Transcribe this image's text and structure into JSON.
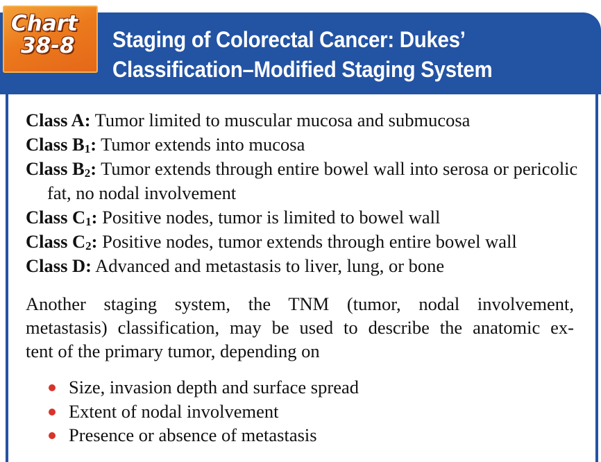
{
  "badge": {
    "line1": "Chart",
    "line2": "38-8"
  },
  "title": {
    "line1": "Staging of Colorectal Cancer: Dukes’",
    "line2": "Classification–Modified Staging System"
  },
  "classes": [
    {
      "label": "Class A",
      "sub": "",
      "text": "Tumor limited to muscular mucosa and submucosa"
    },
    {
      "label": "Class B",
      "sub": "1",
      "text": "Tumor extends into mucosa"
    },
    {
      "label": "Class B",
      "sub": "2",
      "text": "Tumor extends through entire bowel wall into serosa or pericolic fat, no nodal involvement"
    },
    {
      "label": "Class C",
      "sub": "1",
      "text": "Positive nodes, tumor is limited to bowel wall"
    },
    {
      "label": "Class C",
      "sub": "2",
      "text": "Positive nodes, tumor extends through entire bowel wall"
    },
    {
      "label": "Class D",
      "sub": "",
      "text": "Advanced and metastasis to liver, lung, or bone"
    }
  ],
  "paragraph": {
    "line1": "Another staging system, the TNM (tumor, nodal involvement,",
    "line2": "metastasis) classification, may be used to describe the anatomic ex-",
    "line3": "tent of the primary tumor, depending on"
  },
  "bullets": [
    "Size, invasion depth and surface spread",
    "Extent of nodal involvement",
    "Presence or absence of metastasis"
  ],
  "colors": {
    "header_blue": "#2353a3",
    "badge_orange": "#ec7a1c",
    "bullet_red": "#d8342b"
  }
}
